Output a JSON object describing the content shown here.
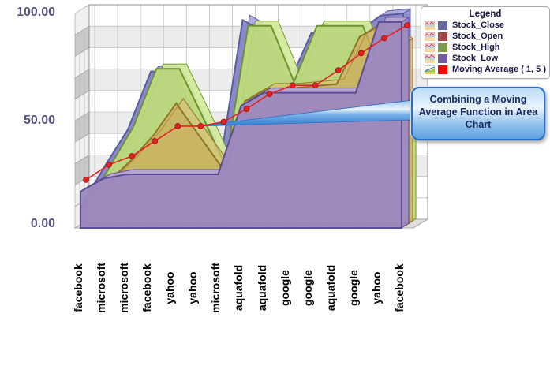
{
  "y_axis": {
    "tick_labels": [
      "100.00",
      "50.00",
      "0.00"
    ]
  },
  "legend": {
    "title": "Legend",
    "items": [
      {
        "label": "Stock_Close",
        "color": "#6666a0",
        "icon": "area-chart-icon"
      },
      {
        "label": "Stock_Open",
        "color": "#a04848",
        "icon": "area-chart-icon"
      },
      {
        "label": "Stock_High",
        "color": "#7d9b4e",
        "icon": "area-chart-icon"
      },
      {
        "label": "Stock_Low",
        "color": "#6f5da2",
        "icon": "area-chart-icon"
      },
      {
        "label": "Moving Average ( 1, 5 )",
        "color": "#ff0000",
        "icon": "moving-average-icon"
      }
    ]
  },
  "callout": {
    "text": "Combining a Moving Average Function in Area Chart"
  },
  "chart_data": {
    "type": "area",
    "projection": "3d",
    "title": "",
    "xlabel": "",
    "ylabel": "",
    "ylim": [
      0,
      100
    ],
    "yticks": [
      0,
      50,
      100
    ],
    "grid": true,
    "legend_position": "top-right",
    "annotation": "Combining a Moving Average Function in Area Chart",
    "categories": [
      "facebook",
      "microsoft",
      "microsoft",
      "facebook",
      "yahoo",
      "yahoo",
      "microsoft",
      "aquafold",
      "aquafold",
      "google",
      "google",
      "aquafold",
      "google",
      "yahoo",
      "facebook"
    ],
    "series": [
      {
        "name": "Stock_Close",
        "kind": "area",
        "color": "#8585c5",
        "values": [
          8,
          26,
          43,
          70,
          70,
          48,
          26,
          94,
          88,
          64,
          88,
          88,
          88,
          96,
          97
        ]
      },
      {
        "name": "Stock_High",
        "kind": "area",
        "color": "#b9d87a",
        "values": [
          8,
          27,
          45,
          72,
          72,
          50,
          27,
          92,
          92,
          66,
          92,
          92,
          92,
          65,
          40
        ]
      },
      {
        "name": "Stock_Open",
        "kind": "area",
        "color": "#c9a14f",
        "values": [
          10,
          20,
          30,
          42,
          57,
          42,
          27,
          58,
          64,
          64,
          65,
          66,
          88,
          94,
          85
        ]
      },
      {
        "name": "Stock_Low",
        "kind": "area",
        "color": "#9c88bc",
        "values": [
          17,
          23,
          25,
          25,
          25,
          25,
          25,
          57,
          63,
          63,
          63,
          63,
          63,
          96,
          96
        ]
      },
      {
        "name": "Moving Average ( 1, 5 )",
        "kind": "line",
        "color": "#e82222",
        "values": [
          21,
          28,
          32,
          39,
          46,
          46,
          48,
          54,
          61,
          65,
          65,
          72,
          80,
          87,
          93
        ]
      }
    ]
  }
}
